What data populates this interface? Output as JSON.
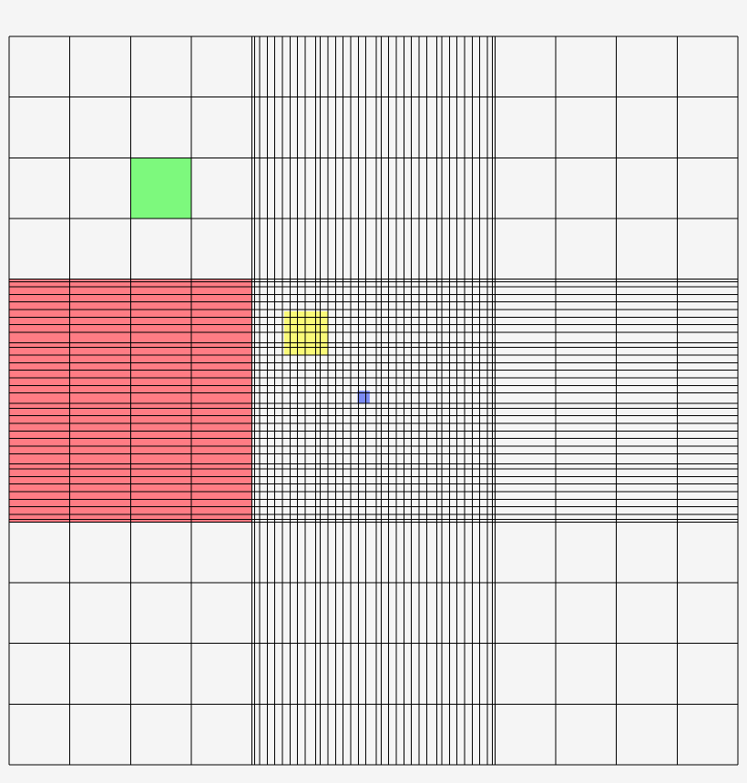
{
  "diagram": {
    "background_color": "#f5f5f5",
    "grid_line_color": "#000000",
    "region_fill_color": "#f5f5f5",
    "outer_grid": {
      "columns": 12,
      "rows": 12
    },
    "highlights": [
      {
        "name": "green-highlight-cell",
        "color": "#7df97d",
        "outer_col": 2,
        "outer_row": 2,
        "level": "outer"
      },
      {
        "name": "red-highlight-band",
        "color": "#ff7c84",
        "outer_cols": [
          0,
          3
        ],
        "outer_rows": [
          4,
          7
        ],
        "level": "outer"
      },
      {
        "name": "yellow-highlight-cell",
        "color": "#fafa78",
        "level": "mid"
      },
      {
        "name": "blue-highlight-cell",
        "color": "#7c8cf4",
        "level": "fine"
      }
    ]
  }
}
